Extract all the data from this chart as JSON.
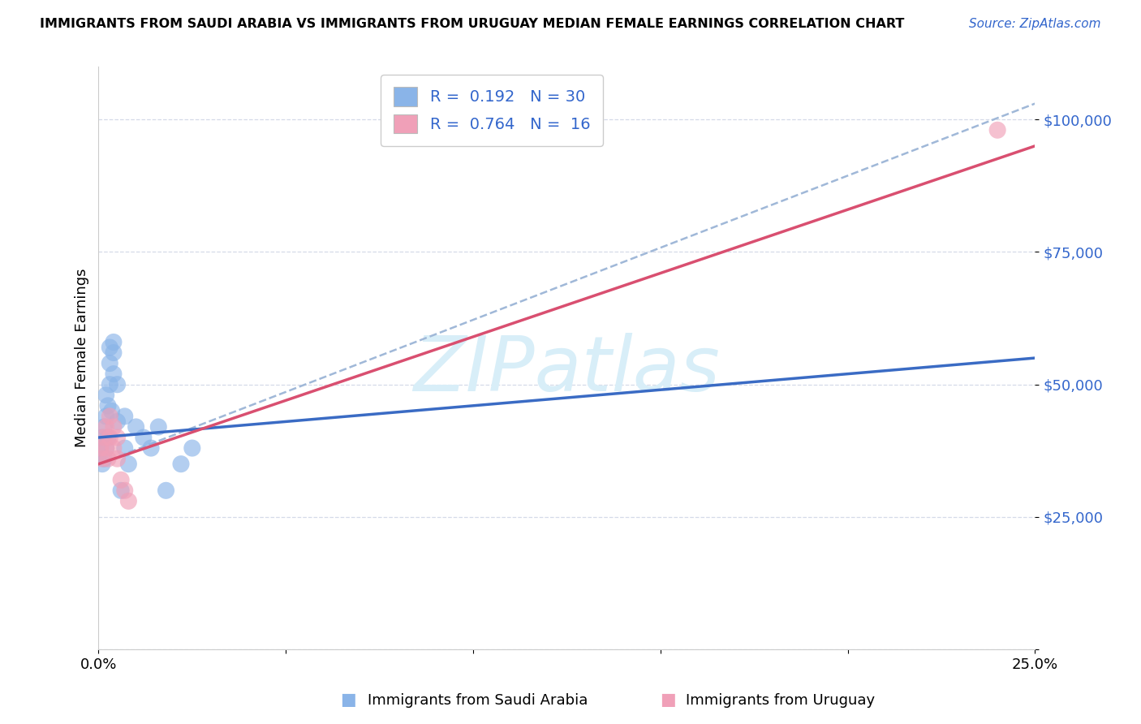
{
  "title": "IMMIGRANTS FROM SAUDI ARABIA VS IMMIGRANTS FROM URUGUAY MEDIAN FEMALE EARNINGS CORRELATION CHART",
  "source": "Source: ZipAtlas.com",
  "ylabel": "Median Female Earnings",
  "xlim": [
    0.0,
    0.25
  ],
  "ylim": [
    0,
    110000
  ],
  "color_saudi": "#8ab4e8",
  "color_uruguay": "#f0a0b8",
  "color_saudi_line": "#3a6bc4",
  "color_uruguay_line": "#d94f70",
  "color_dashed": "#a0b8d8",
  "watermark_color": "#d8eef8",
  "legend_color": "#3366cc",
  "ytick_positions": [
    0,
    25000,
    50000,
    75000,
    100000
  ],
  "ytick_labels": [
    "",
    "$25,000",
    "$50,000",
    "$75,000",
    "$100,000"
  ],
  "xtick_positions": [
    0.0,
    0.05,
    0.1,
    0.15,
    0.2,
    0.25
  ],
  "xtick_labels": [
    "0.0%",
    "",
    "",
    "",
    "",
    "25.0%"
  ],
  "saudi_x": [
    0.0005,
    0.001,
    0.001,
    0.0015,
    0.0015,
    0.002,
    0.002,
    0.002,
    0.0025,
    0.0025,
    0.003,
    0.003,
    0.003,
    0.0035,
    0.004,
    0.004,
    0.004,
    0.005,
    0.005,
    0.006,
    0.007,
    0.007,
    0.008,
    0.01,
    0.012,
    0.014,
    0.016,
    0.018,
    0.022,
    0.025
  ],
  "saudi_y": [
    38000,
    35000,
    40000,
    36000,
    42000,
    38000,
    44000,
    48000,
    40000,
    46000,
    50000,
    54000,
    57000,
    45000,
    52000,
    56000,
    58000,
    43000,
    50000,
    30000,
    38000,
    44000,
    35000,
    42000,
    40000,
    38000,
    42000,
    30000,
    35000,
    38000
  ],
  "uruguay_x": [
    0.0005,
    0.001,
    0.0015,
    0.002,
    0.002,
    0.0025,
    0.003,
    0.003,
    0.004,
    0.004,
    0.005,
    0.005,
    0.006,
    0.007,
    0.008,
    0.24
  ],
  "uruguay_y": [
    38000,
    36000,
    40000,
    38000,
    42000,
    36000,
    40000,
    44000,
    42000,
    38000,
    36000,
    40000,
    32000,
    30000,
    28000,
    98000
  ],
  "saudi_line_x0": 0.0,
  "saudi_line_x1": 0.25,
  "saudi_line_y0": 40000,
  "saudi_line_y1": 55000,
  "uruguay_line_x0": 0.0,
  "uruguay_line_x1": 0.25,
  "uruguay_line_y0": 35000,
  "uruguay_line_y1": 95000,
  "dash_line_x0": 0.0,
  "dash_line_x1": 0.25,
  "dash_line_y0": 35000,
  "dash_line_y1": 103000,
  "bottom_label1": "Immigrants from Saudi Arabia",
  "bottom_label2": "Immigrants from Uruguay",
  "bottom_color1": "#3366cc",
  "bottom_color2": "#d94f70",
  "legend_r1": "R =  0.192   N = 30",
  "legend_r2": "R =  0.764   N =  16",
  "title_fontsize": 11.5,
  "label_fontsize": 13,
  "legend_fontsize": 14,
  "grid_color": "#d5dae8",
  "spine_color": "#cccccc"
}
